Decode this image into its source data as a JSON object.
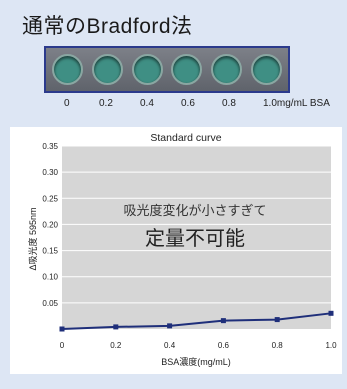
{
  "header": {
    "title": "通常のBradford法"
  },
  "plate": {
    "well_colors": [
      "#3f8f84",
      "#3f8f84",
      "#3f8f84",
      "#3f8f84",
      "#3f8f84",
      "#3f8f84"
    ],
    "concentrations": [
      "0",
      "0.2",
      "0.4",
      "0.6",
      "0.8",
      "1.0mg/mL BSA"
    ]
  },
  "chart_data": {
    "type": "line",
    "title": "Standard curve",
    "xlabel": "BSA濃度(mg/mL)",
    "ylabel": "Δ吸光度 595nm",
    "xlim": [
      0,
      1.0
    ],
    "ylim": [
      0,
      0.35
    ],
    "x_ticks": [
      "0",
      "0.2",
      "0.4",
      "0.6",
      "0.8",
      "1.0"
    ],
    "y_ticks": [
      "0.05",
      "0.10",
      "0.15",
      "0.20",
      "0.25",
      "0.30",
      "0.35"
    ],
    "grid": true,
    "series": [
      {
        "color": "#1f2f7a",
        "x": [
          0,
          0.2,
          0.4,
          0.6,
          0.8,
          1.0
        ],
        "y": [
          0.0,
          0.004,
          0.006,
          0.016,
          0.018,
          0.03
        ]
      }
    ],
    "annotation": {
      "line1": "吸光度変化が小さすぎて",
      "line2": "定量不可能"
    }
  },
  "colors": {
    "background": "#dde6f4",
    "plate_border": "#2b3a8c",
    "well": "#3f8f84",
    "plot_area": "#d6d6d6",
    "series": "#1f2f7a"
  }
}
